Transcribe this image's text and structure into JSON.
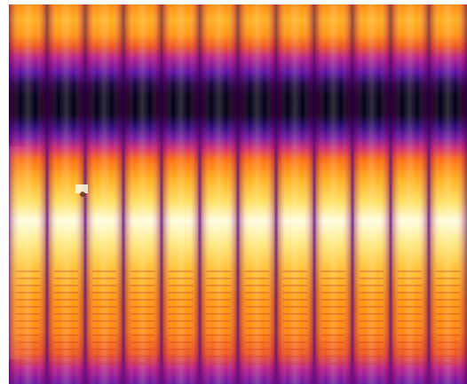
{
  "image": {
    "kind": "thermal-image",
    "colormap": "inferno",
    "palette": {
      "white_hot": "#fffde0",
      "yellow": "#ffd733",
      "orange": "#ff9a10",
      "red_orange": "#f05a20",
      "magenta": "#b8238c",
      "purple": "#5a0fa0",
      "black": "#050018"
    },
    "subject": "ribbed-cylindrical-object",
    "rib_count": 12
  }
}
